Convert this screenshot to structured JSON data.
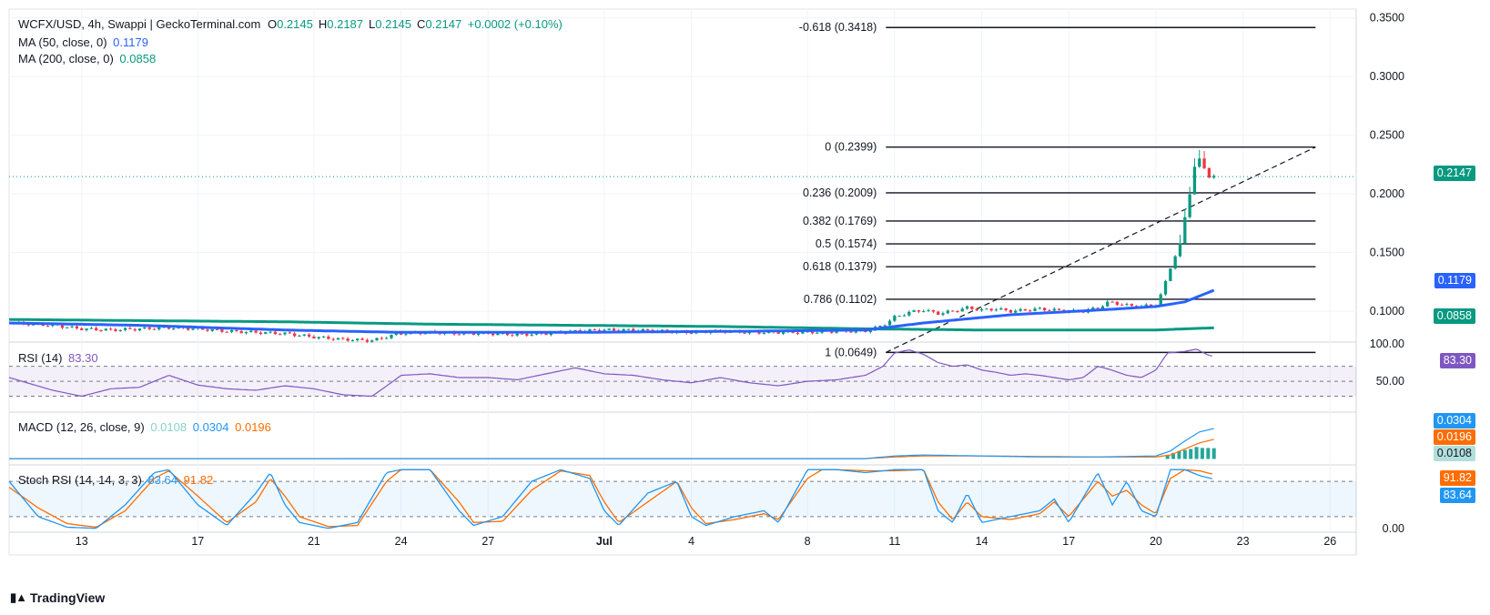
{
  "header": {
    "symbol_line": "WCFX/USD, 4h, Swappi | GeckoTerminal.com",
    "ohlc": [
      {
        "k": "O",
        "v": "0.2145"
      },
      {
        "k": "H",
        "v": "0.2187"
      },
      {
        "k": "L",
        "v": "0.2145"
      },
      {
        "k": "C",
        "v": "0.2147"
      }
    ],
    "change": "+0.0002 (+0.10%)",
    "ma50_label": "MA (50, close, 0)",
    "ma50_value": "0.1179",
    "ma200_label": "MA (200, close, 0)",
    "ma200_value": "0.0858"
  },
  "rsi_legend": {
    "label": "RSI (14)",
    "value": "83.30"
  },
  "macd_legend": {
    "label": "MACD (12, 26, close, 9)",
    "hist": "0.0108",
    "macd": "0.0304",
    "signal": "0.0196"
  },
  "stoch_legend": {
    "label": "Stoch RSI (14, 14, 3, 3)",
    "k": "83.64",
    "d": "91.82"
  },
  "badges": {
    "price": "0.2147",
    "ma50": "0.1179",
    "ma200": "0.0858",
    "rsi": "83.30",
    "macd": "0.0304",
    "signal": "0.0196",
    "hist": "0.0108",
    "stoch_d": "91.82",
    "stoch_k": "83.64"
  },
  "colors": {
    "up": "#089981",
    "down": "#f23645",
    "ma50": "#2962ff",
    "ma200": "#089981",
    "rsi": "#7e57c2",
    "macd": "#2196f3",
    "signal": "#ff6d00",
    "hist": "#26a69a",
    "stoch_k": "#2196f3",
    "stoch_d": "#ff6d00"
  },
  "brand": "TradingView",
  "chart_data": {
    "type": "candlestick",
    "symbol": "WCFX/USD",
    "interval": "4h",
    "x_tick_labels": [
      "13",
      "17",
      "21",
      "24",
      "27",
      "Jul",
      "4",
      "8",
      "11",
      "14",
      "17",
      "20",
      "23",
      "26"
    ],
    "x_range_days": [
      10.5,
      26.9
    ],
    "x_ticks": [
      13,
      17,
      21,
      24,
      27,
      31,
      34,
      38,
      41,
      44,
      47,
      50,
      53,
      56
    ],
    "x_domain": [
      10.5,
      56.9
    ],
    "y_ticks": [
      0.1,
      0.15,
      0.2,
      0.25,
      0.3,
      0.35
    ],
    "y_tick_labels": [
      "0.1000",
      "0.1500",
      "0.2000",
      "0.2500",
      "0.3000",
      "0.3500"
    ],
    "ylim": [
      0.0745,
      0.3575
    ],
    "last_price": 0.2147,
    "series_anchors": {
      "price": [
        [
          10.5,
          0.09
        ],
        [
          12,
          0.088
        ],
        [
          13,
          0.085
        ],
        [
          14,
          0.084
        ],
        [
          15,
          0.085
        ],
        [
          16,
          0.086
        ],
        [
          17,
          0.085
        ],
        [
          18,
          0.083
        ],
        [
          19,
          0.082
        ],
        [
          20,
          0.081
        ],
        [
          21,
          0.078
        ],
        [
          22,
          0.076
        ],
        [
          23,
          0.075
        ],
        [
          23.8,
          0.08
        ],
        [
          24,
          0.081
        ],
        [
          25,
          0.082
        ],
        [
          26,
          0.081
        ],
        [
          27,
          0.081
        ],
        [
          28,
          0.08
        ],
        [
          29,
          0.081
        ],
        [
          30,
          0.083
        ],
        [
          31,
          0.084
        ],
        [
          32,
          0.084
        ],
        [
          33,
          0.083
        ],
        [
          34,
          0.082
        ],
        [
          35,
          0.083
        ],
        [
          36,
          0.082
        ],
        [
          37,
          0.082
        ],
        [
          38,
          0.082
        ],
        [
          39,
          0.083
        ],
        [
          40,
          0.083
        ],
        [
          40.6,
          0.088
        ],
        [
          41,
          0.095
        ],
        [
          41.5,
          0.099
        ],
        [
          42,
          0.101
        ],
        [
          42.5,
          0.098
        ],
        [
          43,
          0.1
        ],
        [
          43.5,
          0.103
        ],
        [
          44,
          0.101
        ],
        [
          44.5,
          0.102
        ],
        [
          45,
          0.1
        ],
        [
          45.5,
          0.101
        ],
        [
          46,
          0.102
        ],
        [
          46.5,
          0.101
        ],
        [
          47,
          0.1
        ],
        [
          47.5,
          0.1
        ],
        [
          48,
          0.103
        ],
        [
          48.4,
          0.108
        ],
        [
          49,
          0.105
        ],
        [
          49.5,
          0.104
        ],
        [
          50,
          0.106
        ],
        [
          50.2,
          0.115
        ],
        [
          50.4,
          0.13
        ],
        [
          50.6,
          0.145
        ],
        [
          50.8,
          0.152
        ],
        [
          51,
          0.18
        ],
        [
          51.2,
          0.205
        ],
        [
          51.4,
          0.232
        ],
        [
          51.6,
          0.226
        ],
        [
          51.8,
          0.215
        ],
        [
          52,
          0.2147
        ]
      ],
      "ma50": [
        [
          10.5,
          0.09
        ],
        [
          15,
          0.088
        ],
        [
          20,
          0.084
        ],
        [
          24,
          0.082
        ],
        [
          30,
          0.082
        ],
        [
          36,
          0.083
        ],
        [
          40,
          0.084
        ],
        [
          42,
          0.09
        ],
        [
          45,
          0.097
        ],
        [
          48,
          0.101
        ],
        [
          50,
          0.104
        ],
        [
          51,
          0.108
        ],
        [
          52,
          0.1179
        ]
      ],
      "ma200": [
        [
          10.5,
          0.093
        ],
        [
          15,
          0.092
        ],
        [
          20,
          0.091
        ],
        [
          25,
          0.089
        ],
        [
          30,
          0.088
        ],
        [
          35,
          0.087
        ],
        [
          40,
          0.085
        ],
        [
          44,
          0.084
        ],
        [
          48,
          0.084
        ],
        [
          50,
          0.084
        ],
        [
          51,
          0.085
        ],
        [
          52,
          0.0858
        ]
      ]
    },
    "fibonacci": [
      {
        "label": "-0.618 (0.3418)",
        "value": 0.3418
      },
      {
        "label": "0 (0.2399)",
        "value": 0.2399
      },
      {
        "label": "0.236 (0.2009)",
        "value": 0.2009
      },
      {
        "label": "0.382 (0.1769)",
        "value": 0.1769
      },
      {
        "label": "0.5 (0.1574)",
        "value": 0.1574
      },
      {
        "label": "0.618 (0.1379)",
        "value": 0.1379
      },
      {
        "label": "0.786 (0.1102)",
        "value": 0.1102
      },
      {
        "label": "1 (0.0649)",
        "value": 0.0649
      }
    ],
    "trend_line": [
      [
        40.7,
        0.0649
      ],
      [
        55.5,
        0.2399
      ]
    ],
    "indicators": {
      "rsi": {
        "ylim": [
          10,
          100
        ],
        "bands": [
          70,
          50,
          30
        ],
        "ticks": [
          "100.00",
          "50.00"
        ],
        "values": [
          [
            10.5,
            55
          ],
          [
            12,
            38
          ],
          [
            13,
            30
          ],
          [
            14,
            40
          ],
          [
            15,
            42
          ],
          [
            16,
            58
          ],
          [
            17,
            45
          ],
          [
            18,
            40
          ],
          [
            19,
            38
          ],
          [
            20,
            44
          ],
          [
            21,
            40
          ],
          [
            22,
            32
          ],
          [
            23,
            30
          ],
          [
            23.8,
            52
          ],
          [
            24,
            58
          ],
          [
            25,
            60
          ],
          [
            26,
            55
          ],
          [
            27,
            55
          ],
          [
            28,
            52
          ],
          [
            29,
            60
          ],
          [
            30,
            68
          ],
          [
            31,
            60
          ],
          [
            32,
            58
          ],
          [
            33,
            52
          ],
          [
            34,
            48
          ],
          [
            35,
            55
          ],
          [
            36,
            48
          ],
          [
            37,
            44
          ],
          [
            38,
            50
          ],
          [
            39,
            52
          ],
          [
            40,
            58
          ],
          [
            40.6,
            70
          ],
          [
            41,
            88
          ],
          [
            41.5,
            92
          ],
          [
            42,
            86
          ],
          [
            42.5,
            75
          ],
          [
            43,
            70
          ],
          [
            43.5,
            72
          ],
          [
            44,
            65
          ],
          [
            44.5,
            62
          ],
          [
            45,
            58
          ],
          [
            45.5,
            60
          ],
          [
            46,
            58
          ],
          [
            46.5,
            55
          ],
          [
            47,
            52
          ],
          [
            47.5,
            55
          ],
          [
            48,
            70
          ],
          [
            48.4,
            66
          ],
          [
            49,
            58
          ],
          [
            49.5,
            55
          ],
          [
            50,
            65
          ],
          [
            50.4,
            88
          ],
          [
            51,
            90
          ],
          [
            51.4,
            93
          ],
          [
            51.8,
            85
          ],
          [
            52,
            83.3
          ]
        ]
      },
      "macd": {
        "ylim": [
          -0.005,
          0.045
        ],
        "zero": 0,
        "macd": [
          [
            10.5,
            0.0003
          ],
          [
            20,
            0.0003
          ],
          [
            30,
            0.0004
          ],
          [
            40,
            0.0004
          ],
          [
            41,
            0.003
          ],
          [
            42,
            0.004
          ],
          [
            44,
            0.003
          ],
          [
            46,
            0.002
          ],
          [
            48,
            0.002
          ],
          [
            50,
            0.003
          ],
          [
            50.5,
            0.008
          ],
          [
            51,
            0.018
          ],
          [
            51.5,
            0.027
          ],
          [
            52,
            0.0304
          ]
        ],
        "signal": [
          [
            10.5,
            0.0003
          ],
          [
            20,
            0.0003
          ],
          [
            30,
            0.0004
          ],
          [
            40,
            0.0004
          ],
          [
            41,
            0.002
          ],
          [
            42,
            0.003
          ],
          [
            44,
            0.003
          ],
          [
            46,
            0.0025
          ],
          [
            48,
            0.002
          ],
          [
            50,
            0.002
          ],
          [
            50.5,
            0.004
          ],
          [
            51,
            0.01
          ],
          [
            51.5,
            0.016
          ],
          [
            52,
            0.0196
          ]
        ],
        "hist": [
          [
            50.4,
            0.004
          ],
          [
            50.6,
            0.006
          ],
          [
            50.8,
            0.008
          ],
          [
            51,
            0.009
          ],
          [
            51.2,
            0.01
          ],
          [
            51.4,
            0.012
          ],
          [
            51.6,
            0.011
          ],
          [
            51.8,
            0.011
          ],
          [
            52,
            0.0108
          ]
        ]
      },
      "stoch_rsi": {
        "ylim": [
          -5,
          105
        ],
        "bands": [
          80,
          20
        ],
        "ticks": [
          "0.00"
        ],
        "k": [
          [
            10.5,
            80
          ],
          [
            11.5,
            20
          ],
          [
            12.5,
            2
          ],
          [
            13.5,
            0
          ],
          [
            14.5,
            40
          ],
          [
            15.5,
            95
          ],
          [
            16,
            100
          ],
          [
            17,
            40
          ],
          [
            18,
            5
          ],
          [
            19,
            60
          ],
          [
            19.5,
            95
          ],
          [
            20,
            40
          ],
          [
            20.5,
            10
          ],
          [
            21.5,
            0
          ],
          [
            22.5,
            10
          ],
          [
            23.5,
            95
          ],
          [
            24,
            100
          ],
          [
            25,
            100
          ],
          [
            26,
            30
          ],
          [
            26.5,
            5
          ],
          [
            27.5,
            20
          ],
          [
            28.5,
            80
          ],
          [
            29.5,
            100
          ],
          [
            30.5,
            85
          ],
          [
            31,
            30
          ],
          [
            31.5,
            5
          ],
          [
            32.5,
            60
          ],
          [
            33.5,
            80
          ],
          [
            34,
            20
          ],
          [
            34.5,
            5
          ],
          [
            35.5,
            20
          ],
          [
            36.5,
            30
          ],
          [
            37,
            10
          ],
          [
            38,
            100
          ],
          [
            38.5,
            100
          ],
          [
            39,
            100
          ],
          [
            40,
            95
          ],
          [
            41,
            100
          ],
          [
            42,
            100
          ],
          [
            42.5,
            30
          ],
          [
            43,
            10
          ],
          [
            43.5,
            60
          ],
          [
            44,
            10
          ],
          [
            45,
            20
          ],
          [
            46,
            30
          ],
          [
            46.5,
            50
          ],
          [
            47,
            10
          ],
          [
            48,
            95
          ],
          [
            48.5,
            40
          ],
          [
            49,
            80
          ],
          [
            49.5,
            30
          ],
          [
            50,
            20
          ],
          [
            50.5,
            100
          ],
          [
            51,
            100
          ],
          [
            51.5,
            90
          ],
          [
            52,
            83.64
          ]
        ],
        "d": [
          [
            10.5,
            70
          ],
          [
            11.5,
            35
          ],
          [
            12.5,
            8
          ],
          [
            13.5,
            2
          ],
          [
            14.5,
            30
          ],
          [
            15.5,
            85
          ],
          [
            16,
            98
          ],
          [
            17,
            55
          ],
          [
            18,
            10
          ],
          [
            19,
            45
          ],
          [
            19.5,
            85
          ],
          [
            20,
            55
          ],
          [
            20.5,
            20
          ],
          [
            21.5,
            3
          ],
          [
            22.5,
            5
          ],
          [
            23.5,
            80
          ],
          [
            24,
            100
          ],
          [
            25,
            100
          ],
          [
            26,
            45
          ],
          [
            26.5,
            10
          ],
          [
            27.5,
            12
          ],
          [
            28.5,
            65
          ],
          [
            29.5,
            98
          ],
          [
            30.5,
            90
          ],
          [
            31,
            45
          ],
          [
            31.5,
            10
          ],
          [
            32.5,
            45
          ],
          [
            33.5,
            80
          ],
          [
            34,
            35
          ],
          [
            34.5,
            8
          ],
          [
            35.5,
            15
          ],
          [
            36.5,
            25
          ],
          [
            37,
            15
          ],
          [
            38,
            85
          ],
          [
            38.5,
            100
          ],
          [
            39,
            100
          ],
          [
            40,
            98
          ],
          [
            41,
            98
          ],
          [
            42,
            100
          ],
          [
            42.5,
            45
          ],
          [
            43,
            15
          ],
          [
            43.5,
            45
          ],
          [
            44,
            20
          ],
          [
            45,
            15
          ],
          [
            46,
            25
          ],
          [
            46.5,
            45
          ],
          [
            47,
            20
          ],
          [
            48,
            80
          ],
          [
            48.5,
            55
          ],
          [
            49,
            65
          ],
          [
            49.5,
            40
          ],
          [
            50,
            25
          ],
          [
            50.5,
            85
          ],
          [
            51,
            100
          ],
          [
            51.5,
            98
          ],
          [
            52,
            91.82
          ]
        ]
      }
    }
  }
}
